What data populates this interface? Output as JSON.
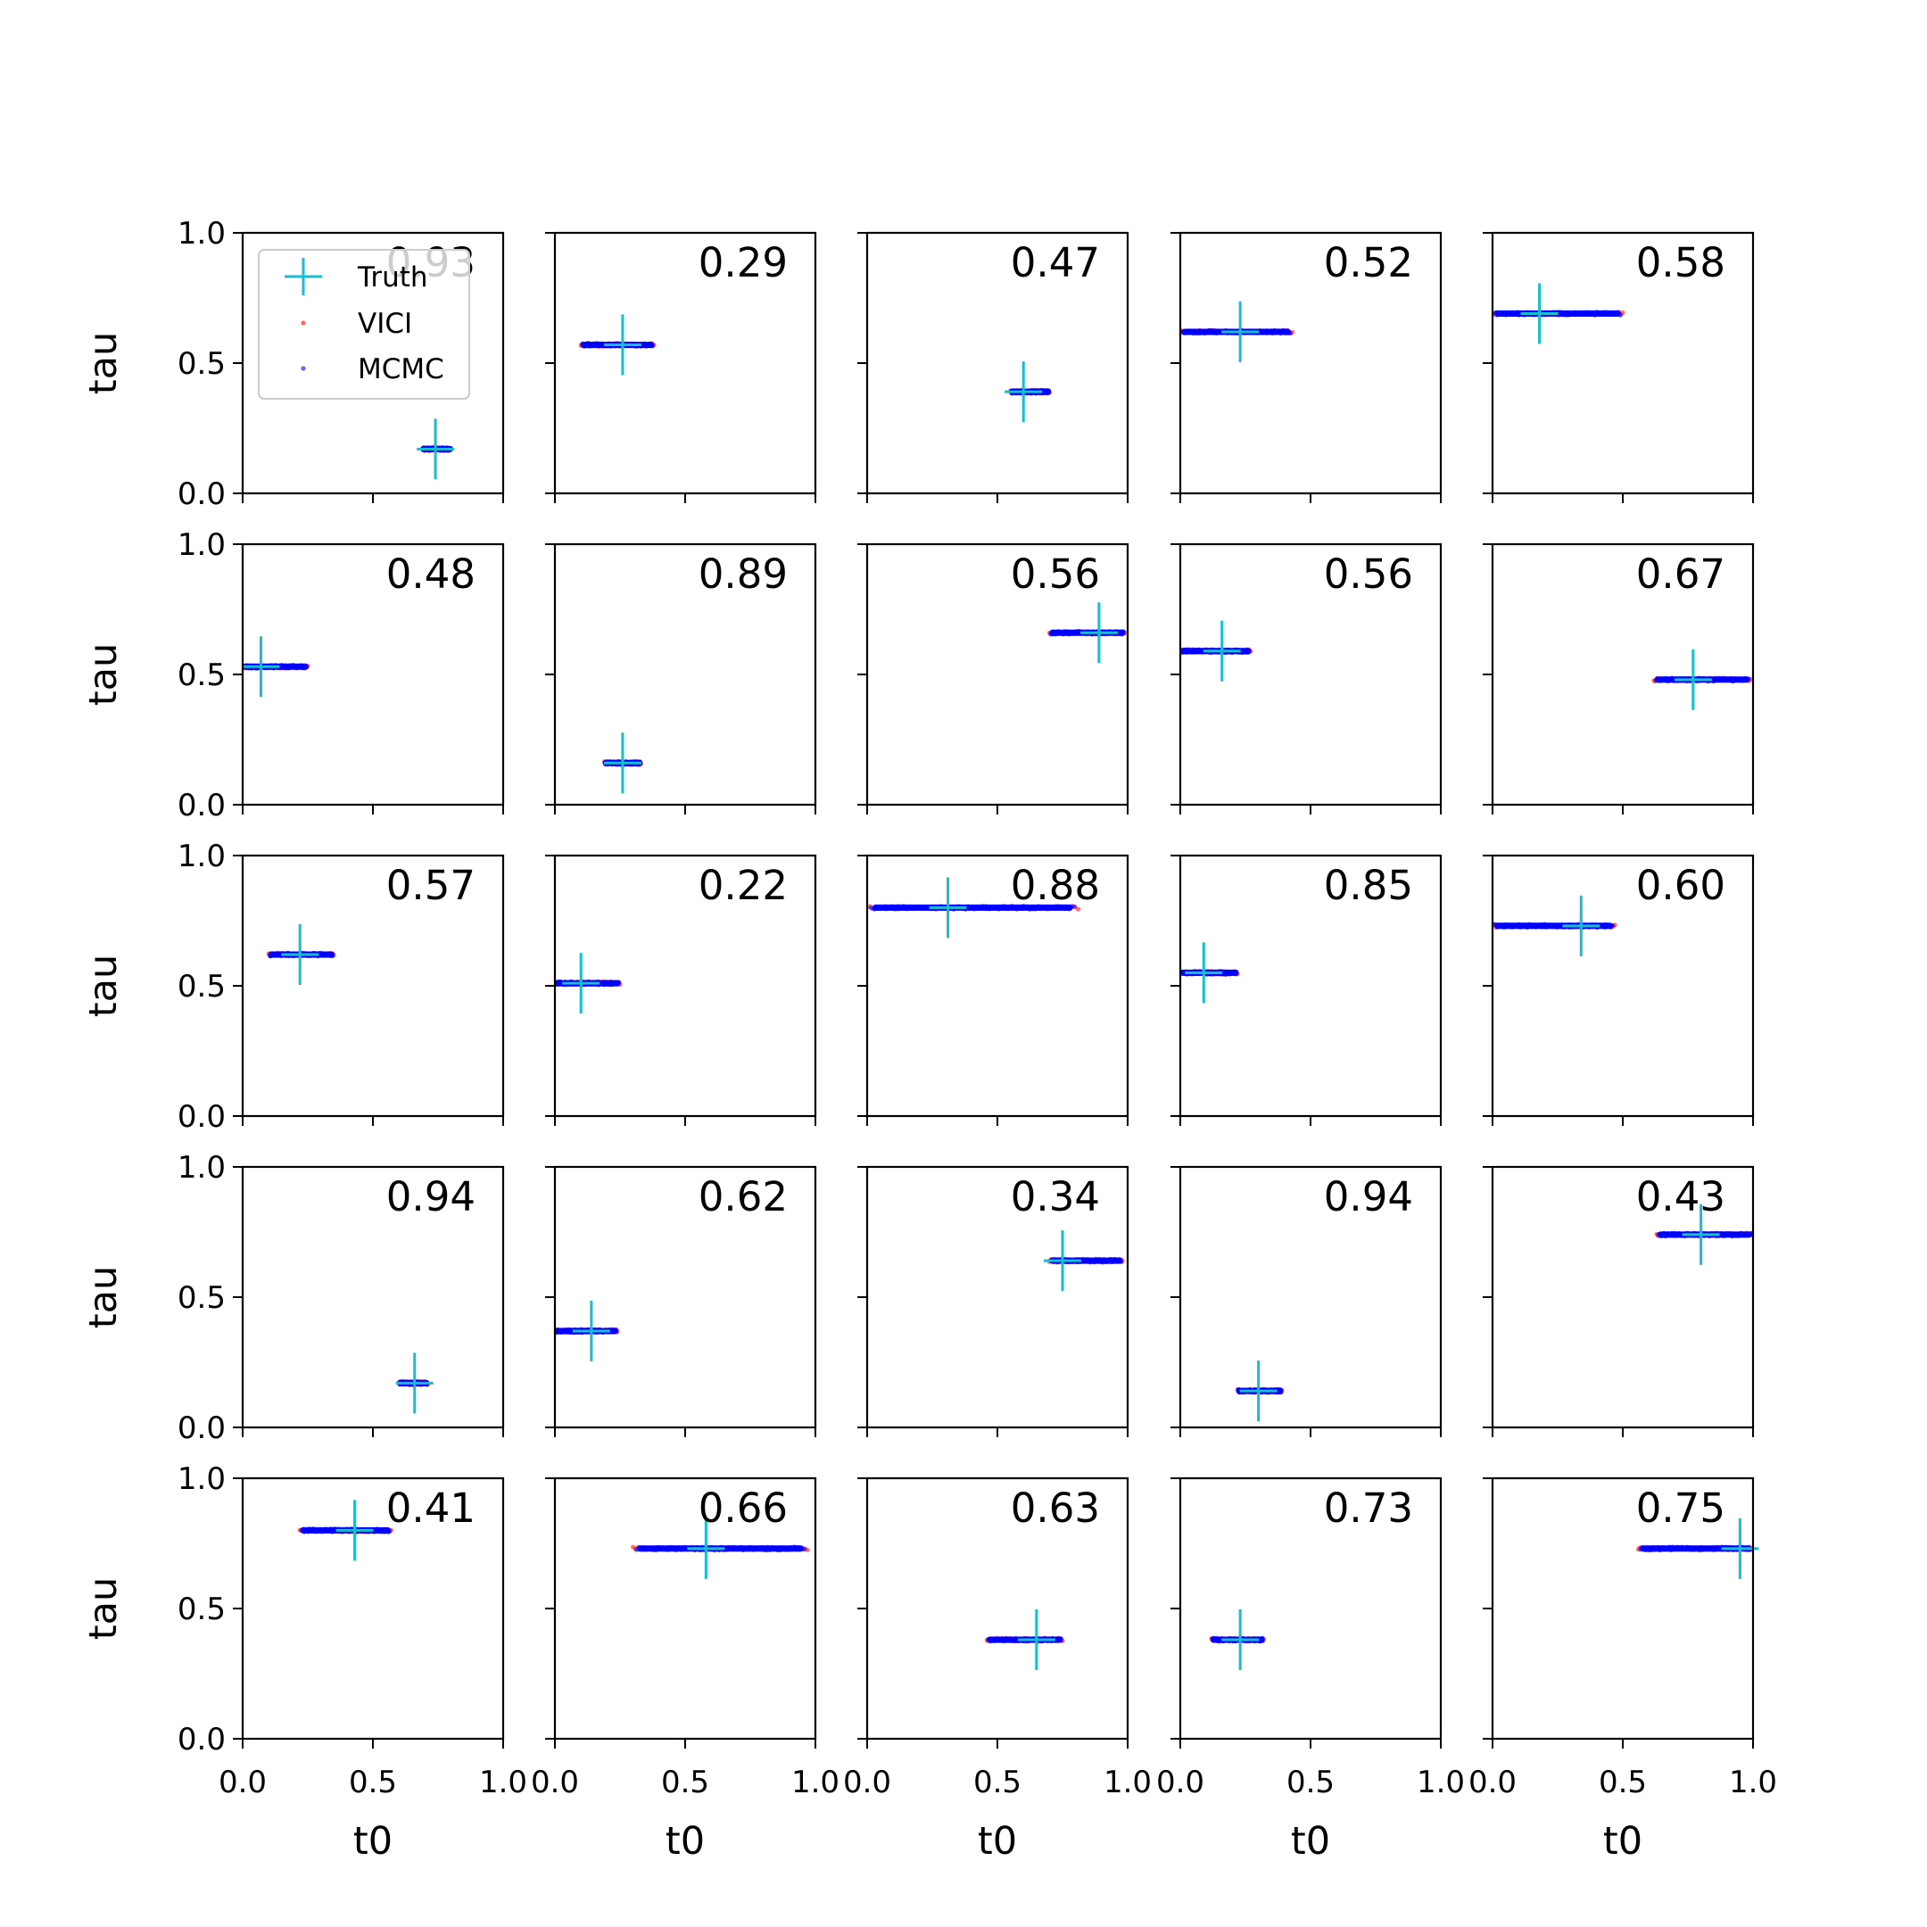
{
  "chart_data": {
    "type": "scatter",
    "grid": {
      "rows": 5,
      "cols": 5
    },
    "xlabel": "t0",
    "ylabel": "tau",
    "xlim": [
      0,
      1
    ],
    "ylim": [
      0,
      1
    ],
    "xticks": [
      "0.0",
      "0.5",
      "1.0"
    ],
    "yticks": [
      "0.0",
      "0.5",
      "1.0"
    ],
    "grid_lines": false,
    "colors": {
      "truth": "#17becf",
      "vici": "#ff0000",
      "mcmc": "#0000ff"
    },
    "legend": {
      "placement": "upper-left of first panel",
      "entries": [
        {
          "key": "truth",
          "label": "Truth",
          "marker": "plus"
        },
        {
          "key": "vici",
          "label": "VICI",
          "marker": "dot"
        },
        {
          "key": "mcmc",
          "label": "MCMC",
          "marker": "dot"
        }
      ]
    },
    "panels": [
      {
        "label": "0.93",
        "truth": [
          0.74,
          0.17
        ],
        "t0_range": [
          0.69,
          0.8
        ]
      },
      {
        "label": "0.29",
        "truth": [
          0.26,
          0.57
        ],
        "t0_range": [
          0.1,
          0.38
        ]
      },
      {
        "label": "0.47",
        "truth": [
          0.6,
          0.39
        ],
        "t0_range": [
          0.55,
          0.7
        ]
      },
      {
        "label": "0.52",
        "truth": [
          0.23,
          0.62
        ],
        "t0_range": [
          0.0,
          0.43
        ]
      },
      {
        "label": "0.58",
        "truth": [
          0.18,
          0.69
        ],
        "t0_range": [
          0.0,
          0.5
        ]
      },
      {
        "label": "0.48",
        "truth": [
          0.07,
          0.53
        ],
        "t0_range": [
          0.0,
          0.25
        ]
      },
      {
        "label": "0.89",
        "truth": [
          0.26,
          0.16
        ],
        "t0_range": [
          0.19,
          0.33
        ]
      },
      {
        "label": "0.56",
        "truth": [
          0.89,
          0.66
        ],
        "t0_range": [
          0.7,
          0.99
        ]
      },
      {
        "label": "0.56",
        "truth": [
          0.16,
          0.59
        ],
        "t0_range": [
          0.0,
          0.27
        ]
      },
      {
        "label": "0.67",
        "truth": [
          0.77,
          0.48
        ],
        "t0_range": [
          0.62,
          0.99
        ]
      },
      {
        "label": "0.57",
        "truth": [
          0.22,
          0.62
        ],
        "t0_range": [
          0.1,
          0.35
        ]
      },
      {
        "label": "0.22",
        "truth": [
          0.1,
          0.51
        ],
        "t0_range": [
          0.0,
          0.25
        ]
      },
      {
        "label": "0.88",
        "truth": [
          0.31,
          0.8
        ],
        "t0_range": [
          0.0,
          0.81
        ]
      },
      {
        "label": "0.85",
        "truth": [
          0.09,
          0.55
        ],
        "t0_range": [
          0.0,
          0.22
        ]
      },
      {
        "label": "0.60",
        "truth": [
          0.34,
          0.73
        ],
        "t0_range": [
          0.0,
          0.47
        ]
      },
      {
        "label": "0.94",
        "truth": [
          0.66,
          0.17
        ],
        "t0_range": [
          0.6,
          0.71
        ]
      },
      {
        "label": "0.62",
        "truth": [
          0.14,
          0.37
        ],
        "t0_range": [
          0.0,
          0.24
        ]
      },
      {
        "label": "0.34",
        "truth": [
          0.75,
          0.64
        ],
        "t0_range": [
          0.7,
          0.98
        ]
      },
      {
        "label": "0.94",
        "truth": [
          0.3,
          0.14
        ],
        "t0_range": [
          0.22,
          0.39
        ]
      },
      {
        "label": "0.43",
        "truth": [
          0.8,
          0.74
        ],
        "t0_range": [
          0.63,
          1.0
        ]
      },
      {
        "label": "0.41",
        "truth": [
          0.43,
          0.8
        ],
        "t0_range": [
          0.22,
          0.57
        ]
      },
      {
        "label": "0.66",
        "truth": [
          0.58,
          0.73
        ],
        "t0_range": [
          0.3,
          0.97
        ]
      },
      {
        "label": "0.63",
        "truth": [
          0.65,
          0.38
        ],
        "t0_range": [
          0.46,
          0.75
        ]
      },
      {
        "label": "0.73",
        "truth": [
          0.23,
          0.38
        ],
        "t0_range": [
          0.12,
          0.32
        ]
      },
      {
        "label": "0.75",
        "truth": [
          0.95,
          0.73
        ],
        "t0_range": [
          0.56,
          1.0
        ]
      }
    ]
  }
}
